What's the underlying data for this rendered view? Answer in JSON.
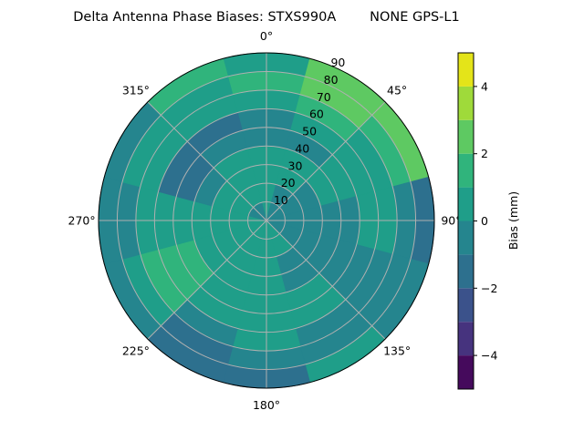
{
  "chart_data": {
    "type": "heatmap",
    "subtype": "polar-filled-contour",
    "title": "Delta Antenna Phase Biases: STXS990A        NONE GPS-L1",
    "angular_ticks": [
      "0°",
      "45°",
      "90°",
      "135°",
      "180°",
      "225°",
      "270°",
      "315°"
    ],
    "angular_tick_values": [
      0,
      45,
      90,
      135,
      180,
      225,
      270,
      315
    ],
    "angular_direction": "clockwise",
    "angular_zero": "top",
    "radial_ticks": [
      "10",
      "20",
      "30",
      "40",
      "50",
      "60",
      "70",
      "80",
      "90"
    ],
    "radial_tick_values": [
      10,
      20,
      30,
      40,
      50,
      60,
      70,
      80,
      90
    ],
    "rlim": [
      0,
      90
    ],
    "grid": true,
    "colorbar": {
      "label": "Bias (mm)",
      "ticks": [
        "4",
        "2",
        "0",
        "−2",
        "−4"
      ],
      "tick_values": [
        4,
        2,
        0,
        -2,
        -4
      ],
      "range": [
        -5,
        5
      ],
      "levels": [
        -5,
        -4,
        -3,
        -2,
        -1,
        0,
        1,
        2,
        3,
        4,
        5
      ],
      "colormap": "viridis",
      "colors": [
        "#450a5c",
        "#46337e",
        "#3b528b",
        "#2d708e",
        "#25858e",
        "#1f9e89",
        "#30b47c",
        "#5ec962",
        "#9fda3a",
        "#e4e419"
      ]
    },
    "azimuths": [
      0,
      30,
      60,
      90,
      120,
      150,
      180,
      210,
      240,
      270,
      300,
      330
    ],
    "radii": [
      5,
      15,
      25,
      35,
      45,
      55,
      65,
      75,
      85
    ],
    "values": [
      [
        0.5,
        0.5,
        0.5,
        0.5,
        -0.5,
        -0.5,
        0.5,
        1.5,
        0.5
      ],
      [
        -0.5,
        -0.5,
        0.5,
        0.5,
        -0.5,
        0.5,
        1.5,
        2.5,
        2.5
      ],
      [
        -0.5,
        -0.5,
        -0.5,
        0.5,
        0.5,
        0.5,
        0.5,
        1.5,
        2.5
      ],
      [
        -0.5,
        -0.5,
        -0.5,
        -0.5,
        -0.5,
        0.5,
        0.5,
        -0.5,
        -1.5
      ],
      [
        -0.5,
        -0.5,
        -0.5,
        -0.5,
        -0.5,
        -0.5,
        -0.5,
        -0.5,
        -0.5
      ],
      [
        0.5,
        0.5,
        -0.5,
        -0.5,
        0.5,
        0.5,
        -0.5,
        -0.5,
        0.5
      ],
      [
        0.5,
        0.5,
        0.5,
        0.5,
        0.5,
        0.5,
        0.5,
        -0.5,
        -1.5
      ],
      [
        0.5,
        0.5,
        0.5,
        0.5,
        0.5,
        0.5,
        -0.5,
        -1.5,
        -1.5
      ],
      [
        0.5,
        0.5,
        0.5,
        0.5,
        1.5,
        1.5,
        1.5,
        0.5,
        -0.5
      ],
      [
        0.5,
        0.5,
        0.5,
        0.5,
        0.5,
        0.5,
        0.5,
        -0.5,
        -0.5
      ],
      [
        -0.5,
        0.5,
        0.5,
        -0.5,
        -1.5,
        -1.5,
        0.5,
        0.5,
        -0.5
      ],
      [
        -0.5,
        0.5,
        0.5,
        0.5,
        -0.5,
        -1.5,
        0.5,
        0.5,
        1.5
      ]
    ]
  }
}
